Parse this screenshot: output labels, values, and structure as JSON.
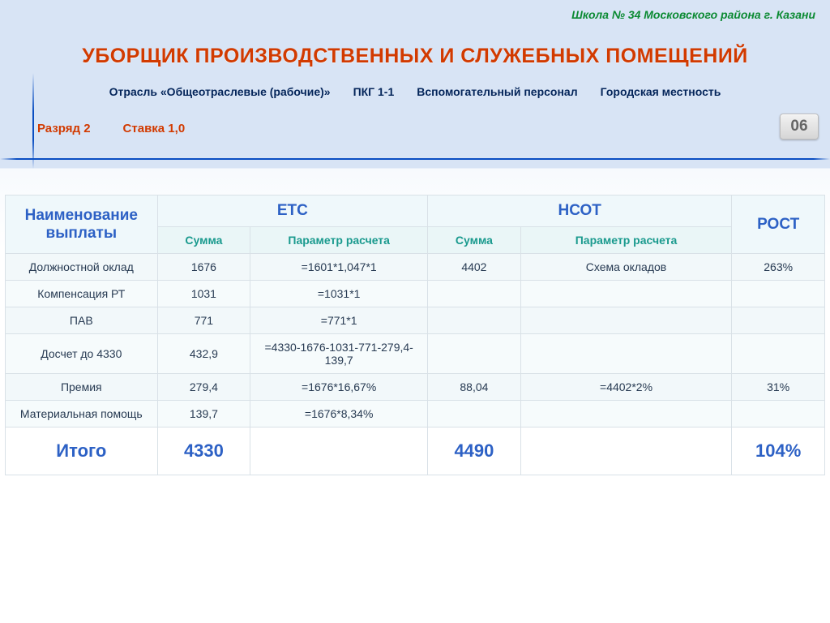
{
  "org": "Школа № 34 Московского района г. Казани",
  "title": "УБОРЩИК ПРОИЗВОДСТВЕННЫХ И СЛУЖЕБНЫХ ПОМЕЩЕНИЙ",
  "sub": {
    "a": "Отрасль «Общеотраслевые (рабочие)»",
    "b": "ПКГ 1-1",
    "c": "Вспомогательный персонал",
    "d": "Городская местность"
  },
  "line2": {
    "rank": "Разряд 2",
    "rate": "Ставка 1,0"
  },
  "badge": "06",
  "headers": {
    "name": "Наименование выплаты",
    "etc": "ЕТС",
    "nsot": "НСОТ",
    "rost": "РОСТ",
    "sum": "Сумма",
    "param": "Параметр расчета"
  },
  "rows": [
    {
      "name": "Должностной оклад",
      "etc_sum": "1676",
      "etc_par": "=1601*1,047*1",
      "nsot_sum": "4402",
      "nsot_par": "Схема окладов",
      "rost": "263%"
    },
    {
      "name": "Компенсация РТ",
      "etc_sum": "1031",
      "etc_par": "=1031*1",
      "nsot_sum": "",
      "nsot_par": "",
      "rost": ""
    },
    {
      "name": "ПАВ",
      "etc_sum": "771",
      "etc_par": "=771*1",
      "nsot_sum": "",
      "nsot_par": "",
      "rost": ""
    },
    {
      "name": "Досчет до 4330",
      "etc_sum": "432,9",
      "etc_par": "=4330-1676-1031-771-279,4-139,7",
      "nsot_sum": "",
      "nsot_par": "",
      "rost": ""
    },
    {
      "name": "Премия",
      "etc_sum": "279,4",
      "etc_par": "=1676*16,67%",
      "nsot_sum": "88,04",
      "nsot_par": "=4402*2%",
      "rost": "31%"
    },
    {
      "name": "Материальная помощь",
      "etc_sum": "139,7",
      "etc_par": "=1676*8,34%",
      "nsot_sum": "",
      "nsot_par": "",
      "rost": ""
    }
  ],
  "total": {
    "label": "Итого",
    "etc_sum": "4330",
    "nsot_sum": "4490",
    "rost": "104%"
  },
  "colors": {
    "title": "#d23a00",
    "blue": "#2d61c5",
    "teal": "#1a9a8e",
    "green": "#0b8a32"
  }
}
